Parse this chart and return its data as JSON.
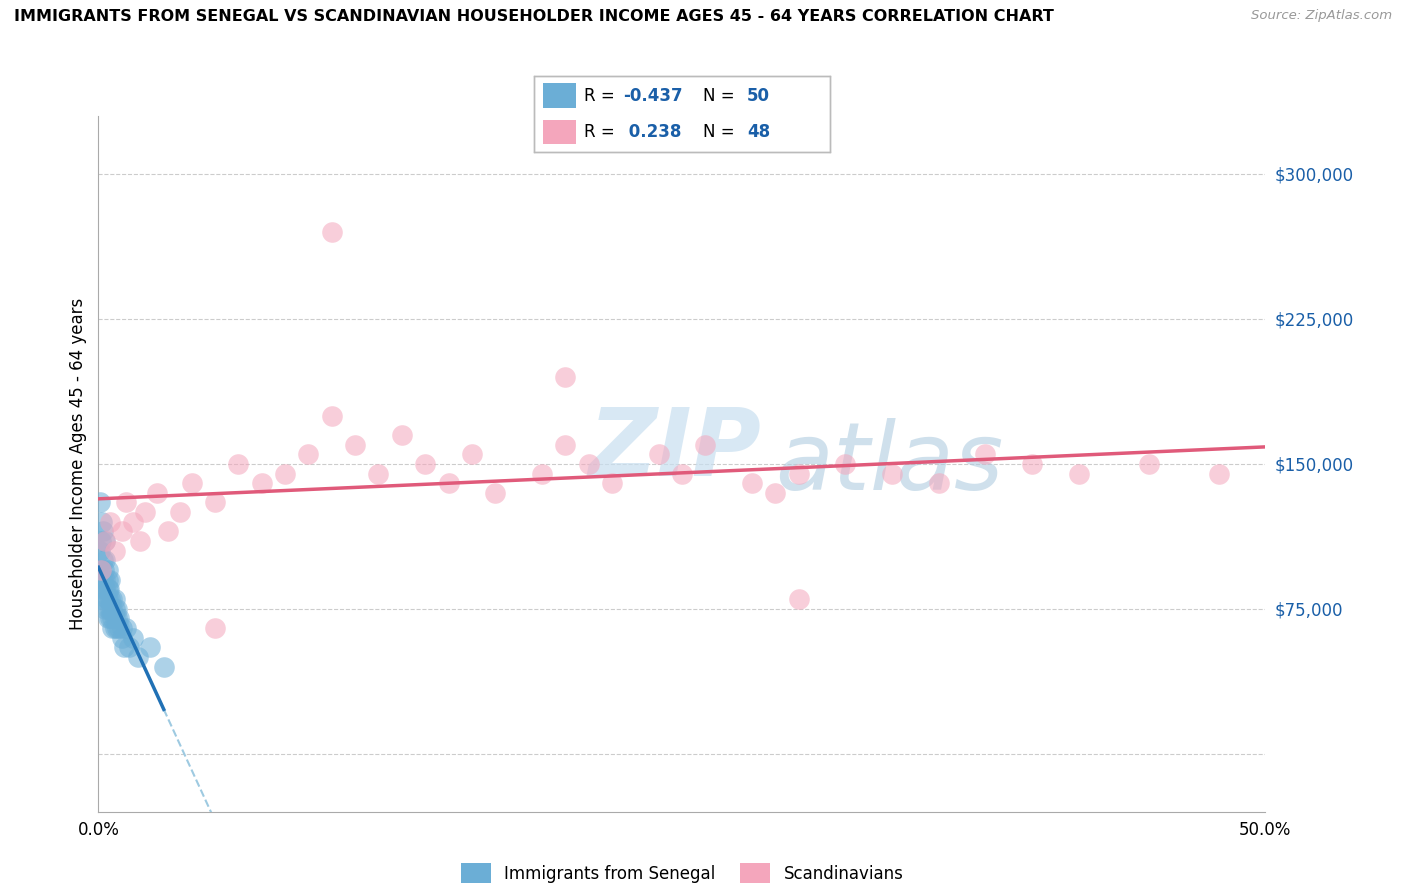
{
  "title": "IMMIGRANTS FROM SENEGAL VS SCANDINAVIAN HOUSEHOLDER INCOME AGES 45 - 64 YEARS CORRELATION CHART",
  "source": "Source: ZipAtlas.com",
  "ylabel": "Householder Income Ages 45 - 64 years",
  "yticks": [
    0,
    75000,
    150000,
    225000,
    300000
  ],
  "ytick_labels": [
    "",
    "$75,000",
    "$150,000",
    "$225,000",
    "$300,000"
  ],
  "xlim": [
    0.0,
    0.5
  ],
  "ylim": [
    -30000,
    330000
  ],
  "color_blue": "#6baed6",
  "color_pink": "#f4a6bc",
  "color_line_blue": "#2171b5",
  "color_line_pink": "#e05a7a",
  "color_line_dashed": "#9ecae1",
  "color_ytick": "#1a5fa8",
  "watermark_zip": "ZIP",
  "watermark_atlas": "atlas",
  "senegal_x": [
    0.0005,
    0.0008,
    0.001,
    0.001,
    0.0012,
    0.0015,
    0.002,
    0.002,
    0.002,
    0.002,
    0.0025,
    0.003,
    0.003,
    0.003,
    0.003,
    0.003,
    0.0035,
    0.004,
    0.004,
    0.004,
    0.004,
    0.004,
    0.004,
    0.0045,
    0.005,
    0.005,
    0.005,
    0.005,
    0.006,
    0.006,
    0.006,
    0.006,
    0.007,
    0.007,
    0.007,
    0.007,
    0.008,
    0.008,
    0.008,
    0.009,
    0.009,
    0.01,
    0.01,
    0.011,
    0.012,
    0.013,
    0.015,
    0.017,
    0.022,
    0.028
  ],
  "senegal_y": [
    130000,
    105000,
    95000,
    110000,
    85000,
    120000,
    100000,
    90000,
    80000,
    115000,
    95000,
    85000,
    100000,
    75000,
    90000,
    110000,
    80000,
    90000,
    75000,
    85000,
    70000,
    95000,
    80000,
    85000,
    75000,
    80000,
    70000,
    90000,
    75000,
    70000,
    80000,
    65000,
    70000,
    75000,
    65000,
    80000,
    65000,
    70000,
    75000,
    65000,
    70000,
    60000,
    65000,
    55000,
    65000,
    55000,
    60000,
    50000,
    55000,
    45000
  ],
  "scandinavian_x": [
    0.001,
    0.003,
    0.005,
    0.007,
    0.01,
    0.012,
    0.015,
    0.018,
    0.02,
    0.025,
    0.03,
    0.035,
    0.04,
    0.05,
    0.06,
    0.07,
    0.08,
    0.09,
    0.1,
    0.11,
    0.12,
    0.13,
    0.14,
    0.15,
    0.16,
    0.17,
    0.19,
    0.2,
    0.21,
    0.22,
    0.24,
    0.25,
    0.26,
    0.28,
    0.29,
    0.3,
    0.32,
    0.34,
    0.36,
    0.38,
    0.4,
    0.42,
    0.45,
    0.48,
    0.1,
    0.2,
    0.3,
    0.05
  ],
  "scandinavian_y": [
    95000,
    110000,
    120000,
    105000,
    115000,
    130000,
    120000,
    110000,
    125000,
    135000,
    115000,
    125000,
    140000,
    130000,
    150000,
    140000,
    145000,
    155000,
    175000,
    160000,
    145000,
    165000,
    150000,
    140000,
    155000,
    135000,
    145000,
    160000,
    150000,
    140000,
    155000,
    145000,
    160000,
    140000,
    135000,
    145000,
    150000,
    145000,
    140000,
    155000,
    150000,
    145000,
    150000,
    145000,
    270000,
    195000,
    80000,
    65000
  ]
}
